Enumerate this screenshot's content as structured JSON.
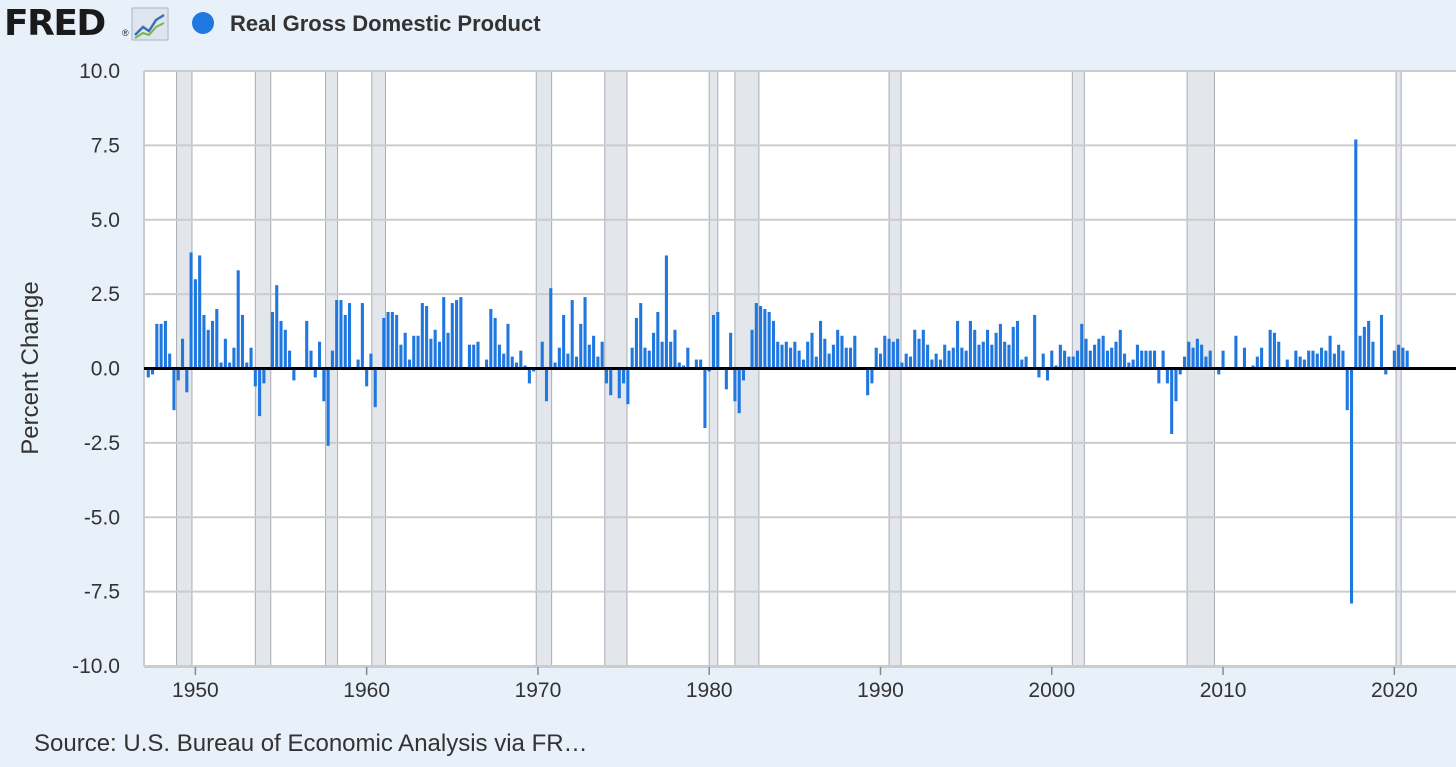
{
  "header": {
    "logo_text": "FRED",
    "logo_registered": "®",
    "legend_color": "#1f77e0"
  },
  "source": {
    "text": "Source: U.S. Bureau of Economic Analysis via FR…"
  },
  "colors": {
    "bar": "#1f77e0",
    "recession": "#e3e6eb",
    "recession_edge": "#a8adb5",
    "grid": "#cccccc",
    "zero_line": "#000000",
    "plot_bg": "#ffffff",
    "page_bg": "#e8f0fa"
  },
  "chart_data": {
    "type": "bar",
    "title": "",
    "series": [
      {
        "name": "Real Gross Domestic Product",
        "x_start": 1947.25,
        "x_step": 0.25,
        "values": [
          -0.3,
          -0.2,
          1.5,
          1.5,
          1.6,
          0.5,
          -1.4,
          -0.4,
          1.0,
          -0.8,
          3.9,
          3.0,
          3.8,
          1.8,
          1.3,
          1.6,
          2.0,
          0.2,
          1.0,
          0.2,
          0.7,
          3.3,
          1.8,
          0.2,
          0.7,
          -0.6,
          -1.6,
          -0.5,
          0.0,
          1.9,
          2.8,
          1.6,
          1.3,
          0.6,
          -0.4,
          0.0,
          0.0,
          1.6,
          0.6,
          -0.3,
          0.9,
          -1.1,
          -2.6,
          0.6,
          2.3,
          2.3,
          1.8,
          2.2,
          0.0,
          0.3,
          2.2,
          -0.6,
          0.5,
          -1.3,
          0.0,
          1.7,
          1.9,
          1.9,
          1.8,
          0.8,
          1.2,
          0.3,
          1.1,
          1.1,
          2.2,
          2.1,
          1.0,
          1.3,
          0.9,
          2.4,
          1.2,
          2.2,
          2.3,
          2.4,
          0.0,
          0.8,
          0.8,
          0.9,
          0.0,
          0.3,
          2.0,
          1.7,
          0.8,
          0.5,
          1.5,
          0.4,
          0.2,
          0.6,
          0.1,
          -0.5,
          -0.1,
          0.0,
          0.9,
          -1.1,
          2.7,
          0.2,
          0.7,
          1.8,
          0.5,
          2.3,
          0.4,
          1.5,
          2.4,
          0.8,
          1.1,
          0.4,
          0.9,
          -0.5,
          -0.9,
          0.0,
          -1.0,
          -0.5,
          -1.2,
          0.7,
          1.7,
          2.2,
          0.7,
          0.6,
          1.2,
          1.9,
          0.9,
          3.8,
          0.9,
          1.3,
          0.2,
          0.1,
          0.7,
          0.0,
          0.3,
          0.3,
          -2.0,
          -0.1,
          1.8,
          1.9,
          0.0,
          -0.7,
          1.2,
          -1.1,
          -1.5,
          -0.4,
          0.0,
          1.3,
          2.2,
          2.1,
          2.0,
          1.9,
          1.6,
          0.9,
          0.8,
          0.9,
          0.7,
          0.9,
          0.6,
          0.3,
          0.9,
          1.2,
          0.4,
          1.6,
          1.0,
          0.5,
          0.8,
          1.3,
          1.1,
          0.7,
          0.7,
          1.1,
          0.0,
          0.0,
          -0.9,
          -0.5,
          0.7,
          0.5,
          1.1,
          1.0,
          0.9,
          1.0,
          0.2,
          0.5,
          0.4,
          1.3,
          1.0,
          1.3,
          0.8,
          0.3,
          0.5,
          0.3,
          0.8,
          0.6,
          0.7,
          1.6,
          0.7,
          0.6,
          1.6,
          1.3,
          0.8,
          0.9,
          1.3,
          0.8,
          1.2,
          1.5,
          0.9,
          0.8,
          1.4,
          1.6,
          0.3,
          0.4,
          0.0,
          1.8,
          -0.3,
          0.5,
          -0.4,
          0.6,
          0.1,
          0.8,
          0.6,
          0.4,
          0.4,
          0.6,
          1.5,
          1.0,
          0.6,
          0.8,
          1.0,
          1.1,
          0.6,
          0.7,
          0.9,
          1.3,
          0.5,
          0.2,
          0.3,
          0.8,
          0.6,
          0.6,
          0.6,
          0.6,
          -0.5,
          0.6,
          -0.5,
          -2.2,
          -1.1,
          -0.2,
          0.4,
          0.9,
          0.7,
          1.0,
          0.8,
          0.4,
          0.6,
          0.0,
          -0.2,
          0.6,
          0.0,
          0.0,
          1.1,
          0.0,
          0.7,
          0.0,
          0.1,
          0.4,
          0.7,
          0.0,
          1.3,
          1.2,
          0.9,
          0.0,
          0.3,
          0.0,
          0.6,
          0.4,
          0.3,
          0.6,
          0.6,
          0.5,
          0.7,
          0.6,
          1.1,
          0.5,
          0.8,
          0.6,
          -1.4,
          -7.9,
          7.7,
          1.1,
          1.4,
          1.6,
          0.9,
          0.0,
          1.8,
          -0.2,
          0.0,
          0.6,
          0.8,
          0.7,
          0.6
        ]
      }
    ],
    "x_ticks": [
      1950,
      1960,
      1970,
      1980,
      1990,
      2000,
      2010,
      2020
    ],
    "x_tick_labels": [
      "1950",
      "1960",
      "1970",
      "1980",
      "1990",
      "2000",
      "2010",
      "2020"
    ],
    "y_ticks": [
      10.0,
      7.5,
      5.0,
      2.5,
      0.0,
      -2.5,
      -5.0,
      -7.5,
      -10.0
    ],
    "y_tick_labels": [
      "10.0",
      "7.5",
      "5.0",
      "2.5",
      "0.0",
      "-2.5",
      "-5.0",
      "-7.5",
      "-10.0"
    ],
    "xlabel": "",
    "ylabel": "Percent Change",
    "xlim": [
      1947.0,
      2023.6
    ],
    "ylim": [
      -10.0,
      10.0
    ],
    "grid": true,
    "recessions": [
      [
        1948.9,
        1949.8
      ],
      [
        1953.5,
        1954.4
      ],
      [
        1957.6,
        1958.3
      ],
      [
        1960.3,
        1961.1
      ],
      [
        1969.9,
        1970.8
      ],
      [
        1973.9,
        1975.2
      ],
      [
        1980.0,
        1980.5
      ],
      [
        1981.5,
        1982.9
      ],
      [
        1990.5,
        1991.2
      ],
      [
        2001.2,
        2001.9
      ],
      [
        2007.9,
        2009.5
      ],
      [
        2020.1,
        2020.4
      ]
    ]
  }
}
